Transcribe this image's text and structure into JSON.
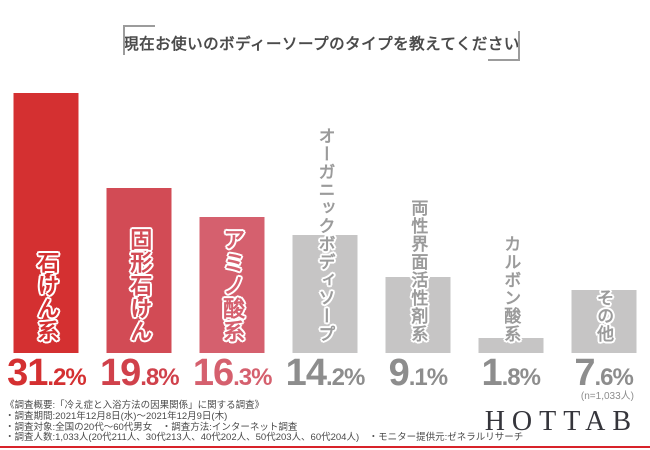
{
  "title": "現在お使いのボディーソープのタイプを教えてください",
  "chart_data": {
    "type": "bar",
    "title": "現在お使いのボディーソープのタイプを教えてください",
    "categories": [
      "石けん系",
      "固形石けん",
      "アミノ酸系",
      "オーガニックボディソープ",
      "両性界面活性剤系",
      "カルボン酸系",
      "その他"
    ],
    "values": [
      31.2,
      19.8,
      16.3,
      14.2,
      9.1,
      1.8,
      7.6
    ],
    "unit": "%",
    "ylim": [
      0,
      31.2
    ],
    "grid": "off",
    "legend": "none",
    "sample_note": "(n=1,033人)",
    "bar_colors": [
      "#d43031",
      "#d24b55",
      "#d5606e",
      "#c6c5c5",
      "#c6c5c5",
      "#c6c5c5",
      "#c6c5c5"
    ],
    "label_colors": [
      "#d43031",
      "#d24b55",
      "#d5606e",
      "#9b9b9b",
      "#9b9b9b",
      "#9b9b9b",
      "#9b9b9b"
    ],
    "value_label_colors": [
      "#d43031",
      "#d0414b",
      "#d5606e",
      "#8d8d8d",
      "#8d8d8d",
      "#8d8d8d",
      "#8d8d8d"
    ]
  },
  "footer": {
    "lines": [
      "《調査概要:「冷え症と入浴方法の因果関係」に関する調査》",
      "・調査期間:2021年12月8日(水)〜2021年12月9日(木)",
      "・調査対象:全国の20代〜60代男女　・調査方法:インターネット調査",
      "・調査人数:1,033人(20代211人、30代213人、40代202人、50代203人、60代204人)　・モニター提供元:ゼネラルリサーチ"
    ],
    "logo": "HOTTAB"
  }
}
